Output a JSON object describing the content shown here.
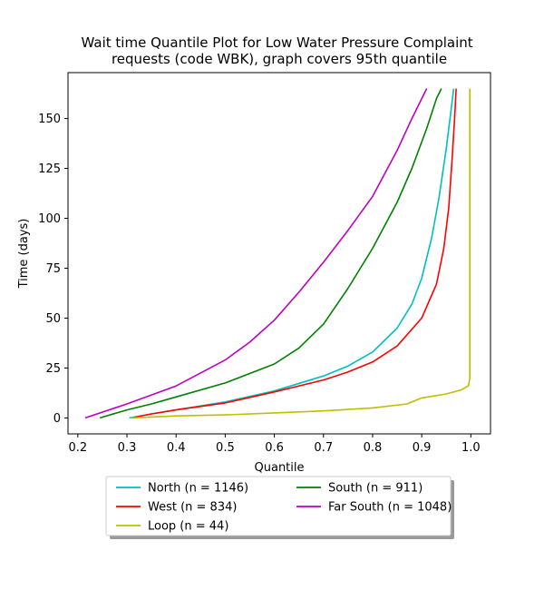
{
  "chart_data": {
    "type": "line",
    "title": "Wait time Quantile Plot for Low Water Pressure Complaint\nrequests (code WBK), graph covers 95th quantile",
    "xlabel": "Quantile",
    "ylabel": "Time (days)",
    "xlim": [
      0.18,
      1.04
    ],
    "ylim": [
      -8,
      173
    ],
    "xticks": [
      0.2,
      0.3,
      0.4,
      0.5,
      0.6,
      0.7,
      0.8,
      0.9,
      1.0
    ],
    "xtick_labels": [
      "0.2",
      "0.3",
      "0.4",
      "0.5",
      "0.6",
      "0.7",
      "0.8",
      "0.9",
      "1.0"
    ],
    "yticks": [
      0,
      25,
      50,
      75,
      100,
      125,
      150
    ],
    "ytick_labels": [
      "0",
      "25",
      "50",
      "75",
      "100",
      "125",
      "150"
    ],
    "grid": false,
    "legend_position": "below",
    "series": [
      {
        "name": "North (n = 1146)",
        "color": "#00bfbf",
        "x": [
          0.305,
          0.35,
          0.4,
          0.5,
          0.6,
          0.7,
          0.75,
          0.8,
          0.85,
          0.88,
          0.9,
          0.92,
          0.935,
          0.95,
          0.96,
          0.965
        ],
        "y": [
          0,
          2,
          4,
          8,
          13.5,
          21,
          26,
          33,
          45,
          57,
          70,
          90,
          110,
          135,
          155,
          165
        ]
      },
      {
        "name": "West (n = 834)",
        "color": "#ff0000",
        "x": [
          0.31,
          0.35,
          0.4,
          0.5,
          0.6,
          0.7,
          0.75,
          0.8,
          0.85,
          0.9,
          0.93,
          0.945,
          0.955,
          0.962,
          0.967,
          0.97
        ],
        "y": [
          0,
          2,
          4,
          7.5,
          13,
          19,
          23,
          28,
          36,
          50,
          67,
          85,
          105,
          130,
          150,
          165
        ]
      },
      {
        "name": "Loop (n = 44)",
        "color": "#bfbf00",
        "x": [
          0.31,
          0.4,
          0.5,
          0.6,
          0.7,
          0.8,
          0.87,
          0.9,
          0.95,
          0.98,
          0.995,
          0.998,
          0.998,
          0.998
        ],
        "y": [
          0,
          1,
          1.5,
          2.5,
          3.5,
          5,
          7,
          10,
          12,
          14,
          16,
          20,
          100,
          165
        ]
      },
      {
        "name": "South (n = 911)",
        "color": "#008000",
        "x": [
          0.245,
          0.3,
          0.35,
          0.4,
          0.5,
          0.6,
          0.65,
          0.7,
          0.75,
          0.8,
          0.85,
          0.88,
          0.91,
          0.93,
          0.94
        ],
        "y": [
          0,
          4,
          7,
          10.5,
          17.5,
          27,
          35,
          47,
          65,
          85,
          108,
          125,
          145,
          160,
          165
        ]
      },
      {
        "name": "Far South (n = 1048)",
        "color": "#bf00bf",
        "x": [
          0.215,
          0.3,
          0.4,
          0.5,
          0.55,
          0.6,
          0.65,
          0.7,
          0.75,
          0.8,
          0.85,
          0.88,
          0.91
        ],
        "y": [
          0,
          7,
          16,
          29,
          38,
          49,
          63,
          78,
          94,
          111,
          134,
          150,
          165
        ]
      }
    ]
  }
}
